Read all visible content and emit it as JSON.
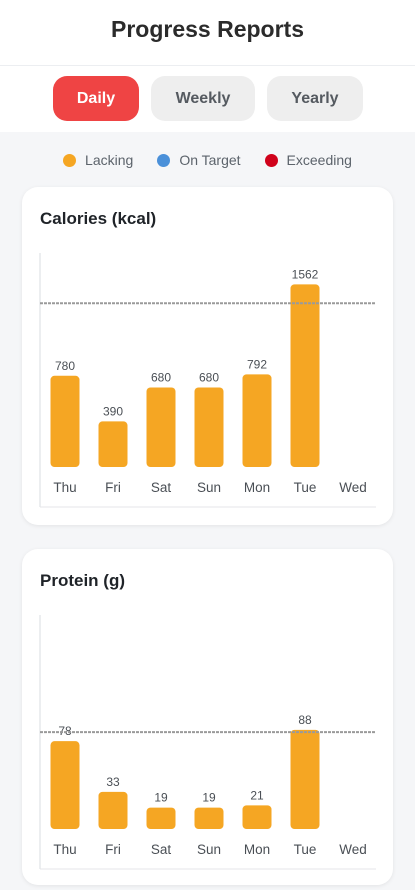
{
  "header": {
    "title": "Progress Reports"
  },
  "tabs": [
    {
      "label": "Daily",
      "active": true
    },
    {
      "label": "Weekly",
      "active": false
    },
    {
      "label": "Yearly",
      "active": false
    }
  ],
  "legend": [
    {
      "label": "Lacking",
      "color": "#f5a623"
    },
    {
      "label": "On Target",
      "color": "#4a90d9"
    },
    {
      "label": "Exceeding",
      "color": "#d0021b"
    }
  ],
  "chart_data": [
    {
      "type": "bar",
      "title": "Calories (kcal)",
      "categories": [
        "Thu",
        "Fri",
        "Sat",
        "Sun",
        "Mon",
        "Tue",
        "Wed"
      ],
      "values": [
        780,
        390,
        680,
        680,
        792,
        1562,
        null
      ],
      "ylim": [
        0,
        1830
      ],
      "target": 1400,
      "bar_color": "#f5a623",
      "target_line_color": "#9a9a9a",
      "grid": false
    },
    {
      "type": "bar",
      "title": "Protein (g)",
      "categories": [
        "Thu",
        "Fri",
        "Sat",
        "Sun",
        "Mon",
        "Tue",
        "Wed"
      ],
      "values": [
        78,
        33,
        19,
        19,
        21,
        88,
        null
      ],
      "ylim": [
        0,
        190
      ],
      "target": 86,
      "bar_color": "#f5a623",
      "target_line_color": "#9a9a9a",
      "grid": false
    }
  ]
}
